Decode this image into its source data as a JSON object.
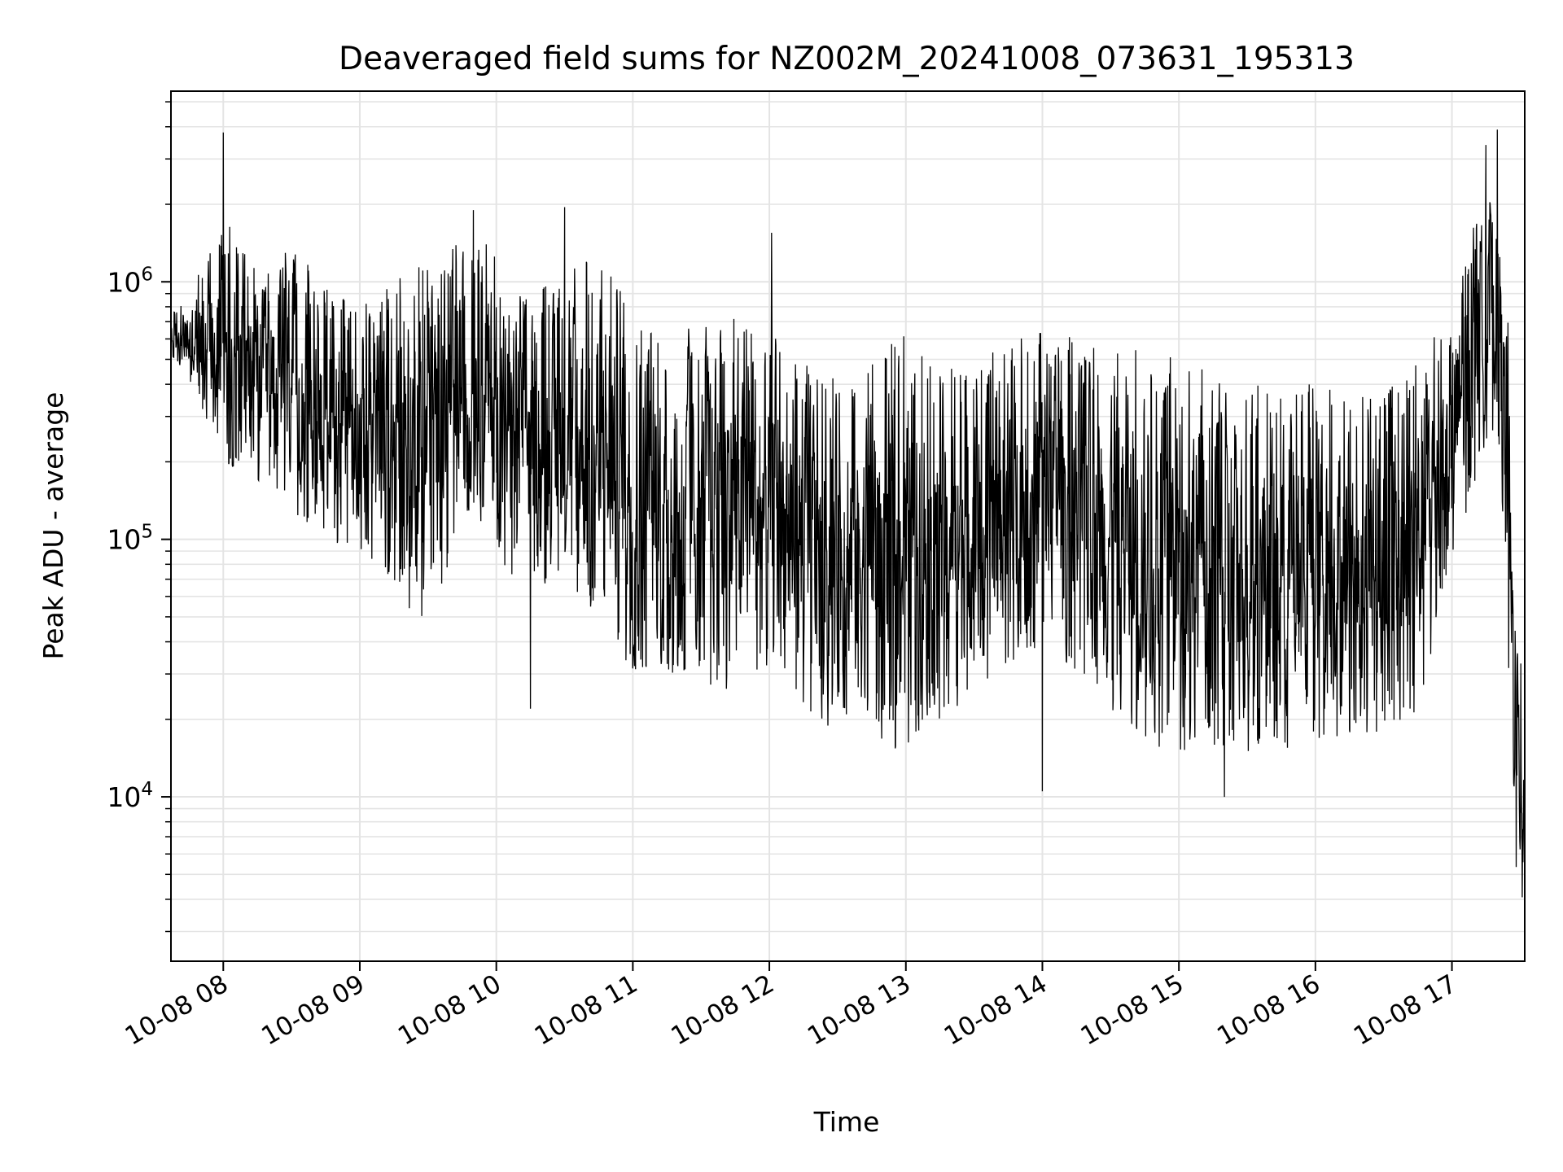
{
  "chart_data": {
    "type": "line",
    "title": "Deaveraged field sums for NZ002M_20241008_073631_195313",
    "xlabel": "Time",
    "ylabel": "Peak ADU - average",
    "x_scale": "time",
    "y_scale": "log",
    "xlim": [
      "2024-10-08 07:37",
      "2024-10-08 17:32"
    ],
    "ylim": [
      2300,
      5500000
    ],
    "x_ticks": [
      {
        "t": "2024-10-08 08:00",
        "label": "10-08 08"
      },
      {
        "t": "2024-10-08 09:00",
        "label": "10-08 09"
      },
      {
        "t": "2024-10-08 10:00",
        "label": "10-08 10"
      },
      {
        "t": "2024-10-08 11:00",
        "label": "10-08 11"
      },
      {
        "t": "2024-10-08 12:00",
        "label": "10-08 12"
      },
      {
        "t": "2024-10-08 13:00",
        "label": "10-08 13"
      },
      {
        "t": "2024-10-08 14:00",
        "label": "10-08 14"
      },
      {
        "t": "2024-10-08 15:00",
        "label": "10-08 15"
      },
      {
        "t": "2024-10-08 16:00",
        "label": "10-08 16"
      },
      {
        "t": "2024-10-08 17:00",
        "label": "10-08 17"
      }
    ],
    "y_ticks": [
      {
        "value": 10000,
        "base": "10",
        "exp": "4"
      },
      {
        "value": 100000,
        "base": "10",
        "exp": "5"
      },
      {
        "value": 1000000,
        "base": "10",
        "exp": "6"
      }
    ],
    "grid": true,
    "line_color": "#000000",
    "series": [
      {
        "x": [
          "2024-10-08 07:37",
          "2024-10-08 07:45",
          "2024-10-08 07:52",
          "2024-10-08 08:00",
          "2024-10-08 08:15",
          "2024-10-08 08:30",
          "2024-10-08 08:45",
          "2024-10-08 09:00",
          "2024-10-08 09:15",
          "2024-10-08 09:30",
          "2024-10-08 09:45",
          "2024-10-08 10:00",
          "2024-10-08 10:15",
          "2024-10-08 10:30",
          "2024-10-08 10:45",
          "2024-10-08 11:00",
          "2024-10-08 11:15",
          "2024-10-08 11:30",
          "2024-10-08 11:45",
          "2024-10-08 12:00",
          "2024-10-08 12:15",
          "2024-10-08 12:30",
          "2024-10-08 12:45",
          "2024-10-08 13:00",
          "2024-10-08 13:15",
          "2024-10-08 13:30",
          "2024-10-08 13:45",
          "2024-10-08 14:00",
          "2024-10-08 14:15",
          "2024-10-08 14:30",
          "2024-10-08 14:45",
          "2024-10-08 15:00",
          "2024-10-08 15:15",
          "2024-10-08 15:30",
          "2024-10-08 15:45",
          "2024-10-08 16:00",
          "2024-10-08 16:15",
          "2024-10-08 16:30",
          "2024-10-08 16:45",
          "2024-10-08 17:00",
          "2024-10-08 17:10",
          "2024-10-08 17:20",
          "2024-10-08 17:25",
          "2024-10-08 17:28",
          "2024-10-08 17:32"
        ],
        "upper": [
          780000,
          850000,
          1300000,
          1800000,
          1100000,
          1400000,
          950000,
          800000,
          1000000,
          1200000,
          1700000,
          1300000,
          900000,
          1100000,
          1300000,
          850000,
          700000,
          650000,
          800000,
          700000,
          480000,
          420000,
          480000,
          650000,
          500000,
          420000,
          650000,
          700000,
          620000,
          550000,
          620000,
          560000,
          450000,
          420000,
          380000,
          420000,
          360000,
          380000,
          520000,
          800000,
          1800000,
          2300000,
          700000,
          40000,
          30000
        ],
        "lower": [
          500000,
          400000,
          300000,
          200000,
          150000,
          130000,
          100000,
          90000,
          60000,
          45000,
          120000,
          80000,
          60000,
          70000,
          45000,
          30000,
          28000,
          26000,
          25000,
          24000,
          20000,
          18000,
          16000,
          15000,
          20000,
          25000,
          30000,
          40000,
          28000,
          20000,
          16000,
          15000,
          13000,
          14000,
          15000,
          16000,
          17000,
          18000,
          20000,
          80000,
          150000,
          300000,
          20000,
          5000,
          3500
        ],
        "peaks": [
          {
            "t": "2024-10-08 08:00",
            "y": 3800000
          },
          {
            "t": "2024-10-08 09:50",
            "y": 1900000
          },
          {
            "t": "2024-10-08 10:15",
            "y": 22000
          },
          {
            "t": "2024-10-08 10:30",
            "y": 1950000
          },
          {
            "t": "2024-10-08 12:01",
            "y": 1550000
          },
          {
            "t": "2024-10-08 14:00",
            "y": 10500
          },
          {
            "t": "2024-10-08 15:20",
            "y": 10000
          },
          {
            "t": "2024-10-08 17:15",
            "y": 3400000
          },
          {
            "t": "2024-10-08 17:20",
            "y": 3900000
          },
          {
            "t": "2024-10-08 17:32",
            "y": 3300
          }
        ]
      }
    ]
  }
}
